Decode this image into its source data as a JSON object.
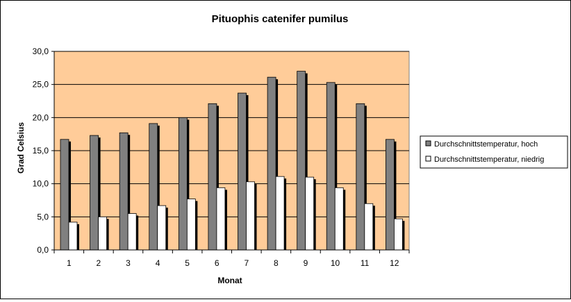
{
  "chart_data": {
    "type": "bar",
    "title": "Pituophis catenifer pumilus",
    "xlabel": "Monat",
    "ylabel": "Grad Celsius",
    "categories": [
      "1",
      "2",
      "3",
      "4",
      "5",
      "6",
      "7",
      "8",
      "9",
      "10",
      "11",
      "12"
    ],
    "ylim": [
      0,
      30
    ],
    "yticks": [
      "0,0",
      "5,0",
      "10,0",
      "15,0",
      "20,0",
      "25,0",
      "30,0"
    ],
    "grid": true,
    "legend_position": "right",
    "plot_background": "#FFCC99",
    "series": [
      {
        "name": "Durchschnittstemperatur, hoch",
        "color": "#808080",
        "values": [
          16.7,
          17.3,
          17.7,
          19.1,
          20.0,
          22.1,
          23.7,
          26.1,
          27.0,
          25.3,
          22.1,
          16.7
        ]
      },
      {
        "name": "Durchschnittstemperatur, niedrig",
        "color": "#FFFFFF",
        "values": [
          4.2,
          5.0,
          5.5,
          6.7,
          7.7,
          9.4,
          10.3,
          11.1,
          11.0,
          9.4,
          7.0,
          4.7
        ]
      }
    ]
  }
}
